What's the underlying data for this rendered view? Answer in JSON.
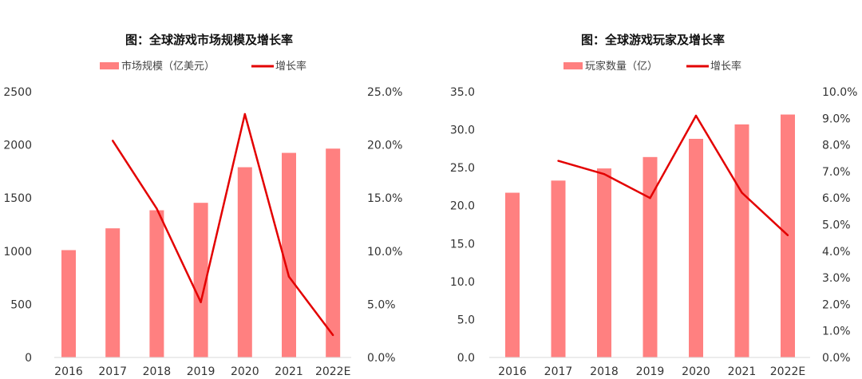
{
  "colors": {
    "bar": "#ff8080",
    "line": "#e30000"
  },
  "chart_data": [
    {
      "type": "bar",
      "title": "图：全球游戏市场规模及增长率",
      "legend_placement": "top",
      "categories": [
        "2016",
        "2017",
        "2018",
        "2019",
        "2020",
        "2021",
        "2022E"
      ],
      "series": [
        {
          "name": "市场规模（亿美元）",
          "type": "bar",
          "axis": "left",
          "values": [
            1010,
            1215,
            1385,
            1455,
            1790,
            1925,
            1965
          ]
        },
        {
          "name": "增长率",
          "type": "line",
          "axis": "right",
          "values": [
            null,
            20.4,
            14.0,
            5.2,
            22.9,
            7.6,
            2.1
          ]
        }
      ],
      "yleft": {
        "min": 0,
        "max": 2500,
        "ticks": [
          "0",
          "500",
          "1000",
          "1500",
          "2000",
          "2500"
        ]
      },
      "yright": {
        "min": 0,
        "max": 25,
        "ticks": [
          "0.0%",
          "5.0%",
          "10.0%",
          "15.0%",
          "20.0%",
          "25.0%"
        ]
      },
      "grid": false
    },
    {
      "type": "bar",
      "title": "图：全球游戏玩家及增长率",
      "legend_placement": "top",
      "categories": [
        "2016",
        "2017",
        "2018",
        "2019",
        "2020",
        "2021",
        "2022E"
      ],
      "series": [
        {
          "name": "玩家数量（亿）",
          "type": "bar",
          "axis": "left",
          "values": [
            21.7,
            23.3,
            24.9,
            26.4,
            28.8,
            30.7,
            32.0
          ]
        },
        {
          "name": "增长率",
          "type": "line",
          "axis": "right",
          "values": [
            null,
            7.4,
            6.9,
            6.0,
            9.1,
            6.2,
            4.6
          ]
        }
      ],
      "yleft": {
        "min": 0,
        "max": 35,
        "ticks": [
          "0.0",
          "5.0",
          "10.0",
          "15.0",
          "20.0",
          "25.0",
          "30.0",
          "35.0"
        ]
      },
      "yright": {
        "min": 0,
        "max": 10,
        "ticks": [
          "0.0%",
          "1.0%",
          "2.0%",
          "3.0%",
          "4.0%",
          "5.0%",
          "6.0%",
          "7.0%",
          "8.0%",
          "9.0%",
          "10.0%"
        ]
      },
      "grid": false
    }
  ]
}
